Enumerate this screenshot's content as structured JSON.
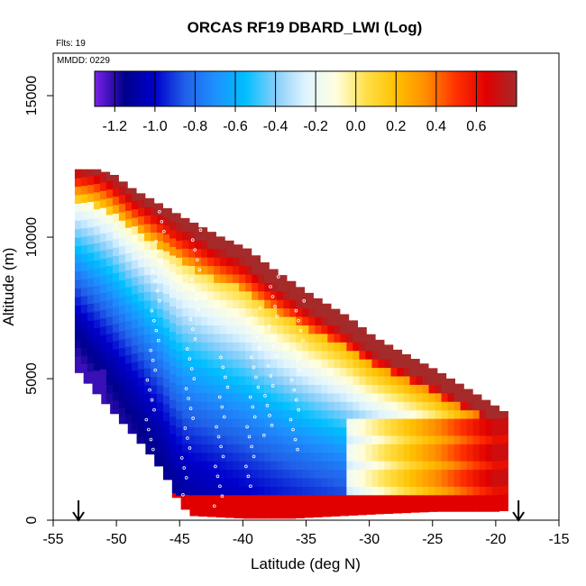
{
  "chart_data": {
    "type": "heatmap",
    "title": "ORCAS RF19 DBARD_LWI (Log)",
    "annotations": [
      "Flts: 19",
      "MMDD: 0229"
    ],
    "xlabel": "Latitude (deg N)",
    "ylabel": "Altitude (m)",
    "xlim": [
      -55,
      -15
    ],
    "ylim": [
      0,
      16500
    ],
    "x_ticks": [
      -55,
      -50,
      -45,
      -40,
      -35,
      -30,
      -25,
      -20,
      -15
    ],
    "x_tick_labels": [
      "-55",
      "-50",
      "-45",
      "-40",
      "-35",
      "-30",
      "-25",
      "-20",
      "-15"
    ],
    "y_ticks": [
      0,
      5000,
      10000,
      15000
    ],
    "y_tick_labels": [
      "0",
      "5000",
      "10000",
      "15000"
    ],
    "colorbar": {
      "range": [
        -1.3,
        0.8
      ],
      "ticks": [
        -1.2,
        -1.0,
        -0.8,
        -0.6,
        -0.4,
        -0.2,
        0.0,
        0.2,
        0.4,
        0.6
      ],
      "tick_labels": [
        "-1.2",
        "-1.0",
        "-0.8",
        "-0.6",
        "-0.4",
        "-0.2",
        "0.0",
        "0.2",
        "0.4",
        "0.6"
      ],
      "colors": [
        "#7a22e6",
        "#00008b",
        "#0000cd",
        "#2060e8",
        "#1e90ff",
        "#00bfff",
        "#87cefa",
        "#e0f4ff",
        "#ffffe0",
        "#ffe04a",
        "#ffc000",
        "#ff8c00",
        "#ff3000",
        "#e00000",
        "#a52a2a"
      ]
    },
    "flight_markers_lat": [
      -53,
      -18.2
    ],
    "field_envelope": {
      "top_altitude": [
        [
          -51.8,
          12400
        ],
        [
          -50.5,
          12200
        ],
        [
          -49.0,
          11700
        ],
        [
          -47.0,
          11200
        ],
        [
          -45.0,
          10700
        ],
        [
          -42.0,
          10000
        ],
        [
          -40.0,
          9600
        ],
        [
          -38.0,
          8900
        ],
        [
          -35.0,
          8000
        ],
        [
          -32.0,
          7200
        ],
        [
          -30.0,
          6500
        ],
        [
          -28.0,
          6000
        ],
        [
          -25.0,
          5300
        ],
        [
          -22.0,
          4500
        ],
        [
          -19.5,
          3800
        ]
      ],
      "bottom_altitude": [
        [
          -53.3,
          5200
        ],
        [
          -52.0,
          4500
        ],
        [
          -50.0,
          3500
        ],
        [
          -48.0,
          2500
        ],
        [
          -46.5,
          1600
        ],
        [
          -45.5,
          700
        ],
        [
          -44.5,
          150
        ],
        [
          -40.0,
          50
        ],
        [
          -36.5,
          50
        ],
        [
          -30.0,
          200
        ],
        [
          -25.0,
          300
        ],
        [
          -20.0,
          300
        ],
        [
          -18.5,
          400
        ]
      ]
    }
  }
}
